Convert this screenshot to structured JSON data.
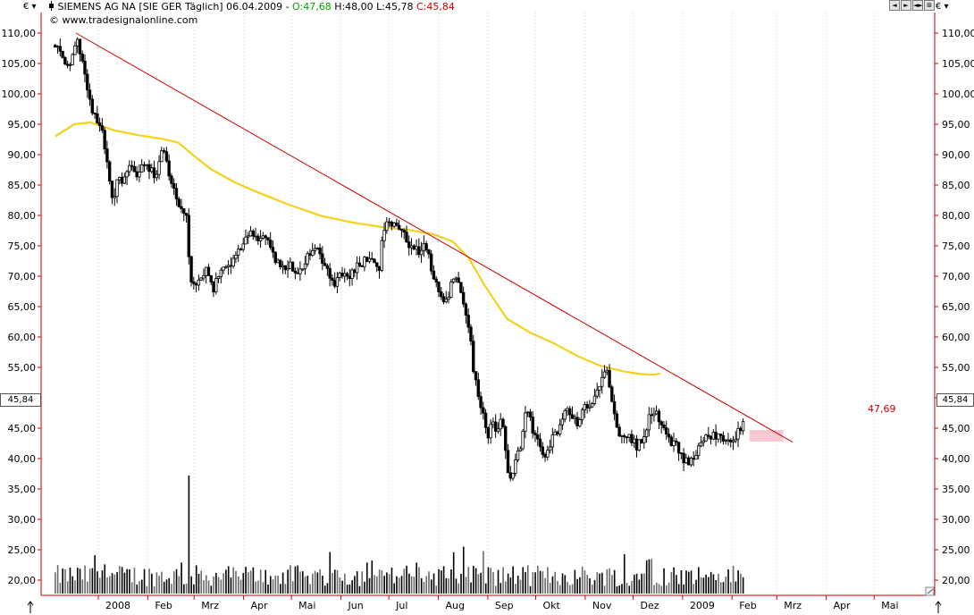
{
  "header": {
    "title": "SIEMENS AG NA [SIE GER  Täglich] 06.04.2009 - ",
    "open_label": "O:47,68",
    "high_label": "H:48,00",
    "low_label": "L:45,78",
    "close_label": "C:45,84",
    "copyright": "© www.tradesignalonline.com",
    "open_color": "#00a000",
    "close_color": "#cc0000",
    "currency_left": "€ ▾",
    "currency_right": "€ ▾",
    "nav_buttons": [
      "◄",
      "►",
      "◄►",
      "⊞"
    ]
  },
  "current_price": {
    "left_label": "45,84",
    "right_label": "45,84",
    "value": 45.84
  },
  "trendline_label": "47,69",
  "chart_data": {
    "type": "candlestick",
    "y_axis": {
      "min": 17.5,
      "max": 111,
      "ticks": [
        20,
        25,
        30,
        35,
        40,
        45,
        50,
        55,
        60,
        65,
        70,
        75,
        80,
        85,
        90,
        95,
        100,
        105,
        110
      ],
      "tick_labels": [
        "20,00",
        "25,00",
        "30,00",
        "35,00",
        "40,00",
        "45,00",
        "50,00",
        "55,00",
        "60,00",
        "65,00",
        "70,00",
        "75,00",
        "80,00",
        "85,00",
        "90,00",
        "95,00",
        "100,00",
        "105,00",
        "110,00"
      ]
    },
    "x_axis": {
      "months": [
        {
          "label": "2008",
          "day": 0
        },
        {
          "label": "Feb",
          "day": 31
        },
        {
          "label": "Mrz",
          "day": 60
        },
        {
          "label": "Apr",
          "day": 91
        },
        {
          "label": "Mai",
          "day": 121
        },
        {
          "label": "Jun",
          "day": 152
        },
        {
          "label": "Jul",
          "day": 182
        },
        {
          "label": "Aug",
          "day": 213
        },
        {
          "label": "Sep",
          "day": 244
        },
        {
          "label": "Okt",
          "day": 274
        },
        {
          "label": "Nov",
          "day": 305
        },
        {
          "label": "Dez",
          "day": 335
        },
        {
          "label": "2009",
          "day": 366
        },
        {
          "label": "Feb",
          "day": 397
        },
        {
          "label": "Mrz",
          "day": 425
        },
        {
          "label": "Apr",
          "day": 456
        },
        {
          "label": "Mai",
          "day": 486
        }
      ]
    },
    "price_path": [
      [
        -27,
        108
      ],
      [
        -22,
        106
      ],
      [
        -18,
        104
      ],
      [
        -14,
        109
      ],
      [
        -11,
        107
      ],
      [
        -7,
        100
      ],
      [
        -3,
        97
      ],
      [
        2,
        94
      ],
      [
        6,
        88
      ],
      [
        9,
        82
      ],
      [
        12,
        86
      ],
      [
        15,
        85
      ],
      [
        19,
        89
      ],
      [
        24,
        86
      ],
      [
        28,
        89
      ],
      [
        32,
        88
      ],
      [
        36,
        86
      ],
      [
        40,
        91
      ],
      [
        43,
        88
      ],
      [
        46,
        85
      ],
      [
        50,
        82
      ],
      [
        53,
        81
      ],
      [
        56,
        80
      ],
      [
        57,
        70
      ],
      [
        60,
        68
      ],
      [
        64,
        70
      ],
      [
        68,
        71
      ],
      [
        72,
        68
      ],
      [
        76,
        70
      ],
      [
        80,
        72
      ],
      [
        84,
        72
      ],
      [
        88,
        74
      ],
      [
        92,
        76
      ],
      [
        96,
        77
      ],
      [
        100,
        76
      ],
      [
        104,
        77
      ],
      [
        108,
        74
      ],
      [
        112,
        72
      ],
      [
        116,
        71
      ],
      [
        120,
        72
      ],
      [
        124,
        71
      ],
      [
        128,
        71
      ],
      [
        132,
        74
      ],
      [
        136,
        75
      ],
      [
        140,
        73
      ],
      [
        144,
        71
      ],
      [
        148,
        69
      ],
      [
        152,
        70
      ],
      [
        156,
        70
      ],
      [
        160,
        71
      ],
      [
        164,
        72
      ],
      [
        168,
        73
      ],
      [
        172,
        72
      ],
      [
        176,
        71
      ],
      [
        178,
        78
      ],
      [
        182,
        79
      ],
      [
        186,
        79
      ],
      [
        190,
        77
      ],
      [
        193,
        76
      ],
      [
        196,
        75
      ],
      [
        200,
        74
      ],
      [
        204,
        75
      ],
      [
        207,
        73
      ],
      [
        210,
        70
      ],
      [
        214,
        67
      ],
      [
        218,
        66
      ],
      [
        222,
        69
      ],
      [
        225,
        69
      ],
      [
        228,
        66
      ],
      [
        232,
        62
      ],
      [
        235,
        55
      ],
      [
        238,
        50
      ],
      [
        241,
        47
      ],
      [
        244,
        44
      ],
      [
        247,
        46
      ],
      [
        250,
        44
      ],
      [
        253,
        47
      ],
      [
        256,
        38
      ],
      [
        259,
        36
      ],
      [
        262,
        40
      ],
      [
        265,
        43
      ],
      [
        268,
        48
      ],
      [
        272,
        45
      ],
      [
        276,
        42
      ],
      [
        280,
        40
      ],
      [
        284,
        43
      ],
      [
        288,
        45
      ],
      [
        292,
        48
      ],
      [
        296,
        47
      ],
      [
        300,
        46
      ],
      [
        304,
        48
      ],
      [
        308,
        49
      ],
      [
        312,
        51
      ],
      [
        316,
        54
      ],
      [
        318,
        55
      ],
      [
        321,
        51
      ],
      [
        324,
        47
      ],
      [
        326,
        43
      ],
      [
        330,
        44
      ],
      [
        334,
        43
      ],
      [
        338,
        42
      ],
      [
        342,
        44
      ],
      [
        346,
        48
      ],
      [
        350,
        47
      ],
      [
        354,
        45
      ],
      [
        358,
        43
      ],
      [
        362,
        42
      ],
      [
        366,
        40
      ],
      [
        370,
        39
      ],
      [
        374,
        41
      ],
      [
        378,
        42
      ],
      [
        382,
        44
      ],
      [
        386,
        44
      ],
      [
        390,
        44
      ],
      [
        394,
        43
      ],
      [
        396,
        42
      ],
      [
        399,
        43
      ],
      [
        402,
        45
      ],
      [
        405,
        47
      ]
    ],
    "avg_line_200": [
      [
        -27,
        93
      ],
      [
        -15,
        95
      ],
      [
        -5,
        95.3
      ],
      [
        10,
        94
      ],
      [
        25,
        93.2
      ],
      [
        40,
        92.6
      ],
      [
        50,
        92
      ],
      [
        60,
        89.8
      ],
      [
        70,
        87.7
      ],
      [
        85,
        85.5
      ],
      [
        100,
        83.8
      ],
      [
        120,
        81.7
      ],
      [
        140,
        79.9
      ],
      [
        160,
        78.8
      ],
      [
        180,
        78
      ],
      [
        195,
        77.6
      ],
      [
        210,
        76.9
      ],
      [
        222,
        75.7
      ],
      [
        232,
        73
      ],
      [
        242,
        68.5
      ],
      [
        256,
        63
      ],
      [
        270,
        60.8
      ],
      [
        285,
        59
      ],
      [
        300,
        56.9
      ],
      [
        315,
        55.2
      ],
      [
        330,
        54.3
      ],
      [
        340,
        53.9
      ],
      [
        348,
        53.8
      ],
      [
        352,
        54
      ]
    ],
    "trendline": {
      "x1": -14,
      "y1": 110,
      "x2": 435,
      "y2": 42.7
    },
    "current_band": {
      "x1": 408,
      "x2": 429,
      "top": 44.7,
      "bottom": 42.8
    },
    "volume": {
      "axis_ref_value": 17.8,
      "max_spike_value": 37.2
    }
  }
}
